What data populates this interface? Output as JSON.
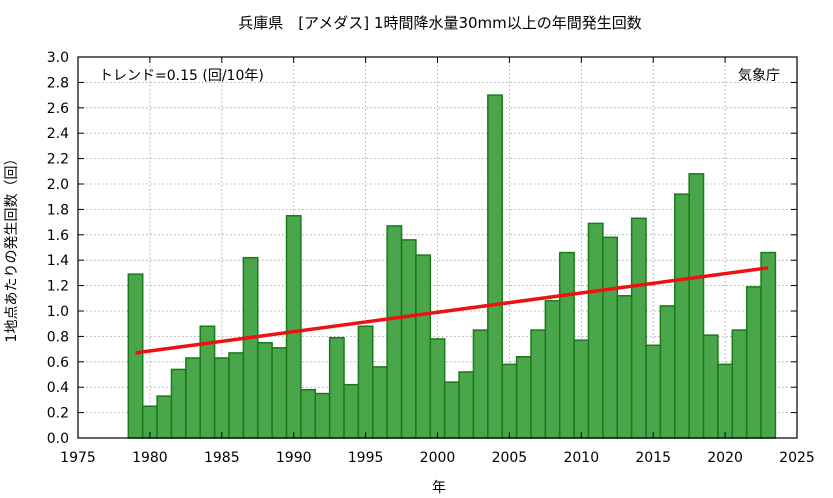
{
  "chart_data": {
    "type": "bar",
    "title": "兵庫県　[アメダス] 1時間降水量30mm以上の年間発生回数",
    "xlabel": "年",
    "ylabel": "1地点あたりの発生回数（回）",
    "xlim": [
      1975,
      2025
    ],
    "ylim": [
      0,
      3.0
    ],
    "xticks": [
      1975,
      1980,
      1985,
      1990,
      1995,
      2000,
      2005,
      2010,
      2015,
      2020,
      2025
    ],
    "yticks": [
      0.0,
      0.2,
      0.4,
      0.6,
      0.8,
      1.0,
      1.2,
      1.4,
      1.6,
      1.8,
      2.0,
      2.2,
      2.4,
      2.6,
      2.8,
      3.0
    ],
    "grid": true,
    "bar_color": "#4aa64a",
    "bar_edge_color": "#1a7a1a",
    "trend_color": "#ee1111",
    "x": [
      1979,
      1980,
      1981,
      1982,
      1983,
      1984,
      1985,
      1986,
      1987,
      1988,
      1989,
      1990,
      1991,
      1992,
      1993,
      1994,
      1995,
      1996,
      1997,
      1998,
      1999,
      2000,
      2001,
      2002,
      2003,
      2004,
      2005,
      2006,
      2007,
      2008,
      2009,
      2010,
      2011,
      2012,
      2013,
      2014,
      2015,
      2016,
      2017,
      2018,
      2019,
      2020,
      2021,
      2022,
      2023
    ],
    "values": [
      1.29,
      0.25,
      0.33,
      0.54,
      0.63,
      0.88,
      0.63,
      0.67,
      1.42,
      0.75,
      0.71,
      1.75,
      0.38,
      0.35,
      0.79,
      0.42,
      0.88,
      0.56,
      1.67,
      1.56,
      1.44,
      0.78,
      0.44,
      0.52,
      0.85,
      2.7,
      0.58,
      0.64,
      0.85,
      1.08,
      1.46,
      0.77,
      1.69,
      1.58,
      1.12,
      1.73,
      0.73,
      1.04,
      1.92,
      2.08,
      0.81,
      0.58,
      0.85,
      1.19,
      1.46
    ],
    "trend": {
      "label": "トレンド=0.15 (回/10年)",
      "x": [
        1979,
        2023
      ],
      "y": [
        0.67,
        1.34
      ]
    },
    "source": "気象庁"
  }
}
